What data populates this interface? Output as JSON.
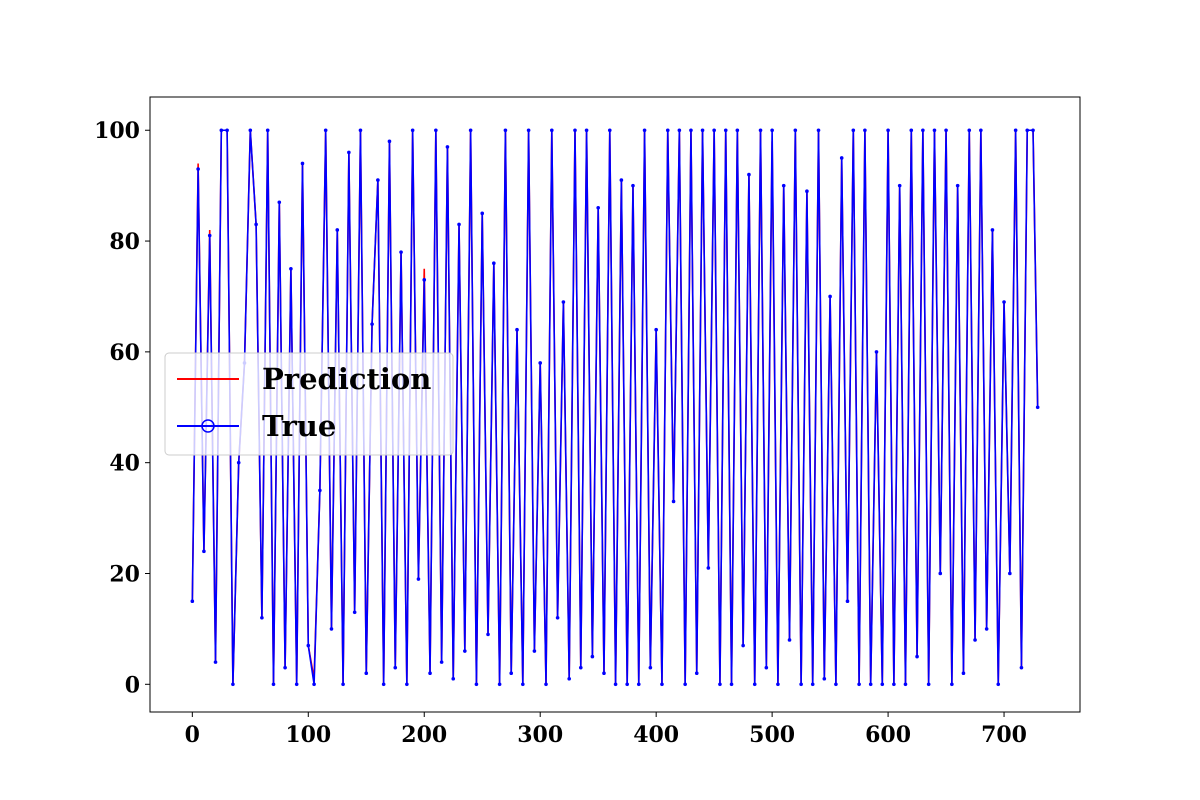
{
  "chart_data": {
    "type": "line",
    "x": [
      0,
      5,
      10,
      15,
      20,
      25,
      30,
      35,
      40,
      45,
      50,
      55,
      60,
      65,
      70,
      75,
      80,
      85,
      90,
      95,
      100,
      105,
      110,
      115,
      120,
      125,
      130,
      135,
      140,
      145,
      150,
      155,
      160,
      165,
      170,
      175,
      180,
      185,
      190,
      195,
      200,
      205,
      210,
      215,
      220,
      225,
      230,
      235,
      240,
      245,
      250,
      255,
      260,
      265,
      270,
      275,
      280,
      285,
      290,
      295,
      300,
      305,
      310,
      315,
      320,
      325,
      330,
      335,
      340,
      345,
      350,
      355,
      360,
      365,
      370,
      375,
      380,
      385,
      390,
      395,
      400,
      405,
      410,
      415,
      420,
      425,
      430,
      435,
      440,
      445,
      450,
      455,
      460,
      465,
      470,
      475,
      480,
      485,
      490,
      495,
      500,
      505,
      510,
      515,
      520,
      525,
      530,
      535,
      540,
      545,
      550,
      555,
      560,
      565,
      570,
      575,
      580,
      585,
      590,
      595,
      600,
      605,
      610,
      615,
      620,
      625,
      630,
      635,
      640,
      645,
      650,
      655,
      660,
      665,
      670,
      675,
      680,
      685,
      690,
      695,
      700,
      705,
      710,
      715,
      720,
      725,
      729
    ],
    "series": [
      {
        "name": "Prediction",
        "color": "#ff0000",
        "marker": false,
        "values": [
          15,
          94,
          24,
          82,
          4,
          100,
          100,
          0,
          40,
          58,
          100,
          83,
          12,
          100,
          0,
          87,
          3,
          75,
          0,
          94,
          7,
          1,
          35,
          100,
          10,
          82,
          0,
          96,
          13,
          100,
          2,
          65,
          91,
          0,
          98,
          3,
          78,
          0,
          100,
          19,
          75,
          2,
          100,
          4,
          97,
          1,
          83,
          6,
          100,
          0,
          85,
          9,
          76,
          0,
          100,
          2,
          64,
          0,
          100,
          6,
          58,
          0,
          100,
          12,
          69,
          1,
          100,
          3,
          100,
          5,
          86,
          2,
          100,
          0,
          91,
          0,
          90,
          0,
          100,
          3,
          64,
          0,
          100,
          33,
          100,
          0,
          100,
          2,
          100,
          21,
          100,
          0,
          100,
          0,
          100,
          7,
          92,
          0,
          100,
          3,
          98,
          0,
          90,
          8,
          100,
          0,
          89,
          0,
          100,
          1,
          70,
          0,
          95,
          15,
          100,
          0,
          100,
          0,
          60,
          0,
          100,
          0,
          90,
          0,
          100,
          5,
          100,
          0,
          100,
          20,
          100,
          0,
          90,
          2,
          100,
          8,
          100,
          10,
          82,
          0,
          69,
          20,
          100,
          3,
          100,
          100,
          50
        ]
      },
      {
        "name": "True",
        "color": "#0000ff",
        "marker": true,
        "values": [
          15,
          93,
          24,
          81,
          4,
          100,
          100,
          0,
          40,
          58,
          100,
          83,
          12,
          100,
          0,
          87,
          3,
          75,
          0,
          94,
          7,
          0,
          35,
          100,
          10,
          82,
          0,
          96,
          13,
          100,
          2,
          65,
          91,
          0,
          98,
          3,
          78,
          0,
          100,
          19,
          73,
          2,
          100,
          4,
          97,
          1,
          83,
          6,
          100,
          0,
          85,
          9,
          76,
          0,
          100,
          2,
          64,
          0,
          100,
          6,
          58,
          0,
          100,
          12,
          69,
          1,
          100,
          3,
          100,
          5,
          86,
          2,
          100,
          0,
          91,
          0,
          90,
          0,
          100,
          3,
          64,
          0,
          100,
          33,
          100,
          0,
          100,
          2,
          100,
          21,
          100,
          0,
          100,
          0,
          100,
          7,
          92,
          0,
          100,
          3,
          100,
          0,
          90,
          8,
          100,
          0,
          89,
          0,
          100,
          1,
          70,
          0,
          95,
          15,
          100,
          0,
          100,
          0,
          60,
          0,
          100,
          0,
          90,
          0,
          100,
          5,
          100,
          0,
          100,
          20,
          100,
          0,
          90,
          2,
          100,
          8,
          100,
          10,
          82,
          0,
          69,
          20,
          100,
          3,
          100,
          100,
          50
        ]
      }
    ],
    "xlim": [
      -36.5,
      765.5
    ],
    "ylim": [
      -5,
      106
    ],
    "xticks": [
      0,
      100,
      200,
      300,
      400,
      500,
      600,
      700
    ],
    "yticks": [
      0,
      20,
      40,
      60,
      80,
      100
    ],
    "grid": false,
    "legend": "center left"
  }
}
